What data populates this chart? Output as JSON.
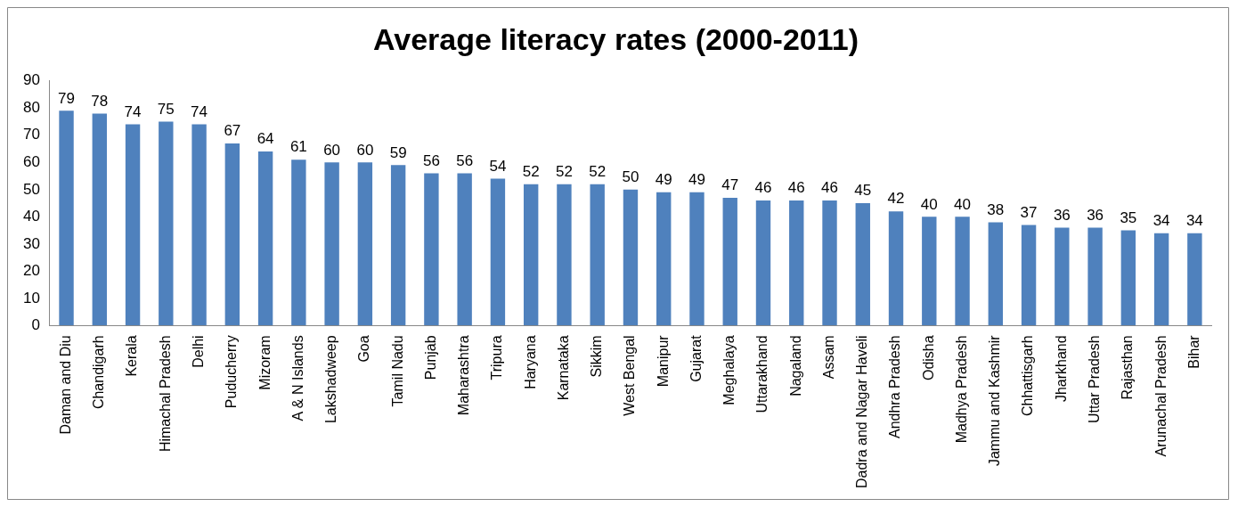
{
  "chart_data": {
    "type": "bar",
    "title": "Average literacy rates (2000-2011)",
    "categories": [
      "Daman and Diu",
      "Chandigarh",
      "Kerala",
      "Himachal Pradesh",
      "Delhi",
      "Puducherry",
      "Mizoram",
      "A & N Islands",
      "Lakshadweep",
      "Goa",
      "Tamil Nadu",
      "Punjab",
      "Maharashtra",
      "Tripura",
      "Haryana",
      "Karnataka",
      "Sikkim",
      "West Bengal",
      "Manipur",
      "Gujarat",
      "Meghalaya",
      "Uttarakhand",
      "Nagaland",
      "Assam",
      "Dadra and Nagar Haveli",
      "Andhra Pradesh",
      "Odisha",
      "Madhya Pradesh",
      "Jammu and Kashmir",
      "Chhattisgarh",
      "Jharkhand",
      "Uttar Pradesh",
      "Rajasthan",
      "Arunachal Pradesh",
      "Bihar"
    ],
    "values": [
      79,
      78,
      74,
      75,
      74,
      67,
      64,
      61,
      60,
      60,
      59,
      56,
      56,
      54,
      52,
      52,
      52,
      50,
      49,
      49,
      47,
      46,
      46,
      46,
      45,
      42,
      40,
      40,
      38,
      37,
      36,
      36,
      35,
      34,
      34
    ],
    "color": "#4f81bd",
    "ylim": [
      0,
      90
    ],
    "yticks": [
      0,
      10,
      20,
      30,
      40,
      50,
      60,
      70,
      80,
      90
    ],
    "grid": false,
    "legend": false,
    "data_labels": true
  }
}
